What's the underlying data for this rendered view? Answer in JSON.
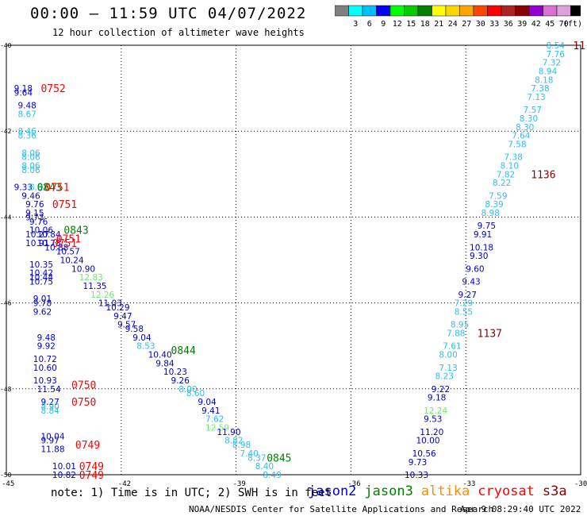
{
  "header": {
    "title": "00:00 – 11:59 UTC 04/07/2022",
    "subtitle": "12 hour collection of altimeter wave heights"
  },
  "colorbar": {
    "unit": "(ft)",
    "bins": [
      {
        "label": "",
        "color": "#808080"
      },
      {
        "label": "3",
        "color": "#00ffff"
      },
      {
        "label": "6",
        "color": "#00bfff"
      },
      {
        "label": "9",
        "color": "#0000ff"
      },
      {
        "label": "12",
        "color": "#00ff00"
      },
      {
        "label": "15",
        "color": "#00cc00"
      },
      {
        "label": "18",
        "color": "#008000"
      },
      {
        "label": "21",
        "color": "#ffff00"
      },
      {
        "label": "24",
        "color": "#ffd700"
      },
      {
        "label": "27",
        "color": "#ffa500"
      },
      {
        "label": "30",
        "color": "#ff4500"
      },
      {
        "label": "33",
        "color": "#ff0000"
      },
      {
        "label": "36",
        "color": "#b22222"
      },
      {
        "label": "39",
        "color": "#8b0000"
      },
      {
        "label": "42",
        "color": "#9400d3"
      },
      {
        "label": "45",
        "color": "#da70d6"
      },
      {
        "label": "70",
        "color": "#dda0dd"
      },
      {
        "label": "",
        "color": "#000000"
      }
    ]
  },
  "footer": {
    "note": "note: 1) Time is in UTC; 2) SWH is in feet",
    "credit": "NOAA/NESDIS Center for Satellite Applications and Research",
    "stamp": "Apr  9 08:29:40 UTC 2022",
    "legend": [
      {
        "name": "jason2",
        "color": "#0000cc"
      },
      {
        "name": "jason3",
        "color": "#008000"
      },
      {
        "name": "altika",
        "color": "#ff8c00"
      },
      {
        "name": "cryosat",
        "color": "#ff0000"
      },
      {
        "name": "s3a",
        "color": "#8b0000"
      }
    ]
  },
  "chart_data": {
    "type": "scatter",
    "xlim": [
      -45,
      -30
    ],
    "ylim": [
      -50,
      -40
    ],
    "xticks": [
      -45,
      -42,
      -39,
      -36,
      -33,
      -30
    ],
    "yticks": [
      -40,
      -42,
      -44,
      -46,
      -48,
      -50
    ],
    "grid": true,
    "points": [
      {
        "x": -44.8,
        "y": -41.0,
        "label": "9.18",
        "color": "#0000cc"
      },
      {
        "x": -44.8,
        "y": -41.1,
        "label": "9.64",
        "color": "#0000cc"
      },
      {
        "x": -44.7,
        "y": -41.4,
        "label": "9.48",
        "color": "#0000cc"
      },
      {
        "x": -44.7,
        "y": -41.6,
        "label": "8.67",
        "color": "#33bbee"
      },
      {
        "x": -44.7,
        "y": -42.0,
        "label": "8.46",
        "color": "#33bbee"
      },
      {
        "x": -44.7,
        "y": -42.1,
        "label": "8.36",
        "color": "#33bbee"
      },
      {
        "x": -44.6,
        "y": -42.5,
        "label": "8.06",
        "color": "#33bbee"
      },
      {
        "x": -44.6,
        "y": -42.6,
        "label": "8.06",
        "color": "#33bbee"
      },
      {
        "x": -44.6,
        "y": -42.8,
        "label": "8.06",
        "color": "#33bbee"
      },
      {
        "x": -44.6,
        "y": -42.9,
        "label": "8.06",
        "color": "#33bbee"
      },
      {
        "x": -44.8,
        "y": -43.3,
        "label": "9.33",
        "color": "#0000cc"
      },
      {
        "x": -44.4,
        "y": -43.3,
        "label": "8.62",
        "color": "#33bbee"
      },
      {
        "x": -44.6,
        "y": -43.5,
        "label": "9.46",
        "color": "#0000cc"
      },
      {
        "x": -44.5,
        "y": -43.7,
        "label": "9.76",
        "color": "#0000cc"
      },
      {
        "x": -44.5,
        "y": -43.9,
        "label": "9.15",
        "color": "#0000cc"
      },
      {
        "x": -44.5,
        "y": -44.0,
        "label": "9.73",
        "color": "#0000cc"
      },
      {
        "x": -44.4,
        "y": -44.1,
        "label": "9.76",
        "color": "#0000cc"
      },
      {
        "x": -44.4,
        "y": -44.3,
        "label": "10.06",
        "color": "#0000cc"
      },
      {
        "x": -44.5,
        "y": -44.4,
        "label": "10.27",
        "color": "#0000cc"
      },
      {
        "x": -44.5,
        "y": -44.6,
        "label": "10.91",
        "color": "#0000cc"
      },
      {
        "x": -44.2,
        "y": -44.4,
        "label": "10.84",
        "color": "#0000cc"
      },
      {
        "x": -44.2,
        "y": -44.6,
        "label": "10.78",
        "color": "#0000cc"
      },
      {
        "x": -44.0,
        "y": -44.7,
        "label": "10.88",
        "color": "#0000cc"
      },
      {
        "x": -43.7,
        "y": -44.8,
        "label": "10.57",
        "color": "#0000cc"
      },
      {
        "x": -43.6,
        "y": -45.0,
        "label": "10.24",
        "color": "#0000cc"
      },
      {
        "x": -44.4,
        "y": -45.1,
        "label": "10.35",
        "color": "#0000cc"
      },
      {
        "x": -44.4,
        "y": -45.3,
        "label": "10.42",
        "color": "#0000cc"
      },
      {
        "x": -44.4,
        "y": -45.4,
        "label": "10.44",
        "color": "#0000cc"
      },
      {
        "x": -44.4,
        "y": -45.5,
        "label": "10.75",
        "color": "#0000cc"
      },
      {
        "x": -43.3,
        "y": -45.2,
        "label": "10.90",
        "color": "#0000cc"
      },
      {
        "x": -43.1,
        "y": -45.4,
        "label": "12.83",
        "color": "#66ee66"
      },
      {
        "x": -43.0,
        "y": -45.6,
        "label": "11.35",
        "color": "#0000cc"
      },
      {
        "x": -42.8,
        "y": -45.8,
        "label": "12.26",
        "color": "#66ee66"
      },
      {
        "x": -42.6,
        "y": -46.0,
        "label": "11.03",
        "color": "#0000cc"
      },
      {
        "x": -44.3,
        "y": -45.9,
        "label": "9.01",
        "color": "#0000cc"
      },
      {
        "x": -44.3,
        "y": -46.0,
        "label": "9.78",
        "color": "#0000cc"
      },
      {
        "x": -44.3,
        "y": -46.2,
        "label": "9.62",
        "color": "#0000cc"
      },
      {
        "x": -42.4,
        "y": -46.1,
        "label": "10.29",
        "color": "#0000cc"
      },
      {
        "x": -42.2,
        "y": -46.3,
        "label": "9.47",
        "color": "#0000cc"
      },
      {
        "x": -42.1,
        "y": -46.5,
        "label": "9.57",
        "color": "#0000cc"
      },
      {
        "x": -41.9,
        "y": -46.6,
        "label": "9.58",
        "color": "#0000cc"
      },
      {
        "x": -41.7,
        "y": -46.8,
        "label": "9.04",
        "color": "#0000cc"
      },
      {
        "x": -41.6,
        "y": -47.0,
        "label": "8.53",
        "color": "#33bbee"
      },
      {
        "x": -44.2,
        "y": -46.8,
        "label": "9.48",
        "color": "#0000cc"
      },
      {
        "x": -44.2,
        "y": -47.0,
        "label": "9.92",
        "color": "#0000cc"
      },
      {
        "x": -44.3,
        "y": -47.3,
        "label": "10.72",
        "color": "#0000cc"
      },
      {
        "x": -44.3,
        "y": -47.5,
        "label": "10.60",
        "color": "#0000cc"
      },
      {
        "x": -41.3,
        "y": -47.2,
        "label": "10.40",
        "color": "#0000cc"
      },
      {
        "x": -41.1,
        "y": -47.4,
        "label": "9.84",
        "color": "#0000cc"
      },
      {
        "x": -40.9,
        "y": -47.6,
        "label": "10.23",
        "color": "#0000cc"
      },
      {
        "x": -40.7,
        "y": -47.8,
        "label": "9.26",
        "color": "#0000cc"
      },
      {
        "x": -44.3,
        "y": -47.8,
        "label": "10.93",
        "color": "#0000cc"
      },
      {
        "x": -40.5,
        "y": -48.0,
        "label": "8.00",
        "color": "#33bbee"
      },
      {
        "x": -40.3,
        "y": -48.1,
        "label": "8.60",
        "color": "#33bbee"
      },
      {
        "x": -44.2,
        "y": -48.0,
        "label": "11.54",
        "color": "#0000cc"
      },
      {
        "x": -40.0,
        "y": -48.3,
        "label": "9.04",
        "color": "#0000cc"
      },
      {
        "x": -44.1,
        "y": -48.3,
        "label": "9.27",
        "color": "#0000cc"
      },
      {
        "x": -44.1,
        "y": -48.4,
        "label": "8.90",
        "color": "#33bbee"
      },
      {
        "x": -44.1,
        "y": -48.5,
        "label": "8.84",
        "color": "#33bbee"
      },
      {
        "x": -39.9,
        "y": -48.5,
        "label": "9.41",
        "color": "#0000cc"
      },
      {
        "x": -39.8,
        "y": -48.7,
        "label": "7.62",
        "color": "#33bbee"
      },
      {
        "x": -39.8,
        "y": -48.9,
        "label": "12.59",
        "color": "#66ee66"
      },
      {
        "x": -39.5,
        "y": -49.0,
        "label": "11.90",
        "color": "#0000cc"
      },
      {
        "x": -39.3,
        "y": -49.2,
        "label": "8.82",
        "color": "#33bbee"
      },
      {
        "x": -39.1,
        "y": -49.3,
        "label": "8.98",
        "color": "#33bbee"
      },
      {
        "x": -38.9,
        "y": -49.5,
        "label": "7.40",
        "color": "#33bbee"
      },
      {
        "x": -38.7,
        "y": -49.6,
        "label": "8.37",
        "color": "#33bbee"
      },
      {
        "x": -38.5,
        "y": -49.8,
        "label": "8.40",
        "color": "#33bbee"
      },
      {
        "x": -38.3,
        "y": -50.0,
        "label": "8.49",
        "color": "#33bbee"
      },
      {
        "x": -44.1,
        "y": -49.1,
        "label": "10.04",
        "color": "#0000cc"
      },
      {
        "x": -44.1,
        "y": -49.2,
        "label": "9.97",
        "color": "#0000cc"
      },
      {
        "x": -44.1,
        "y": -49.4,
        "label": "11.88",
        "color": "#0000cc"
      },
      {
        "x": -43.8,
        "y": -49.8,
        "label": "10.01",
        "color": "#0000cc"
      },
      {
        "x": -43.8,
        "y": -50.0,
        "label": "10.82",
        "color": "#0000cc"
      },
      {
        "x": -30.9,
        "y": -40.0,
        "label": "8.54",
        "color": "#33bbee"
      },
      {
        "x": -30.9,
        "y": -40.2,
        "label": "7.76",
        "color": "#33bbee"
      },
      {
        "x": -31.0,
        "y": -40.4,
        "label": "7.32",
        "color": "#33bbee"
      },
      {
        "x": -31.1,
        "y": -40.6,
        "label": "8.94",
        "color": "#33bbee"
      },
      {
        "x": -31.2,
        "y": -40.8,
        "label": "8.18",
        "color": "#33bbee"
      },
      {
        "x": -31.3,
        "y": -41.0,
        "label": "7.38",
        "color": "#33bbee"
      },
      {
        "x": -31.4,
        "y": -41.2,
        "label": "7.13",
        "color": "#33bbee"
      },
      {
        "x": -31.5,
        "y": -41.5,
        "label": "7.57",
        "color": "#33bbee"
      },
      {
        "x": -31.6,
        "y": -41.7,
        "label": "8.30",
        "color": "#33bbee"
      },
      {
        "x": -31.7,
        "y": -41.9,
        "label": "8.30",
        "color": "#33bbee"
      },
      {
        "x": -31.8,
        "y": -42.1,
        "label": "7.64",
        "color": "#33bbee"
      },
      {
        "x": -31.9,
        "y": -42.3,
        "label": "7.58",
        "color": "#33bbee"
      },
      {
        "x": -32.0,
        "y": -42.6,
        "label": "7.38",
        "color": "#33bbee"
      },
      {
        "x": -32.1,
        "y": -42.8,
        "label": "8.10",
        "color": "#33bbee"
      },
      {
        "x": -32.2,
        "y": -43.0,
        "label": "7.82",
        "color": "#33bbee"
      },
      {
        "x": -32.3,
        "y": -43.2,
        "label": "8.22",
        "color": "#33bbee"
      },
      {
        "x": -32.4,
        "y": -43.5,
        "label": "7.59",
        "color": "#33bbee"
      },
      {
        "x": -32.5,
        "y": -43.7,
        "label": "8.39",
        "color": "#33bbee"
      },
      {
        "x": -32.6,
        "y": -43.9,
        "label": "8.98",
        "color": "#33bbee"
      },
      {
        "x": -32.7,
        "y": -44.2,
        "label": "9.75",
        "color": "#0000cc"
      },
      {
        "x": -32.8,
        "y": -44.4,
        "label": "9.91",
        "color": "#0000cc"
      },
      {
        "x": -32.9,
        "y": -44.7,
        "label": "10.18",
        "color": "#0000cc"
      },
      {
        "x": -32.9,
        "y": -44.9,
        "label": "9.30",
        "color": "#0000cc"
      },
      {
        "x": -33.0,
        "y": -45.2,
        "label": "9.60",
        "color": "#0000cc"
      },
      {
        "x": -33.1,
        "y": -45.5,
        "label": "9.43",
        "color": "#0000cc"
      },
      {
        "x": -33.2,
        "y": -45.8,
        "label": "9.27",
        "color": "#0000cc"
      },
      {
        "x": -33.3,
        "y": -46.0,
        "label": "7.29",
        "color": "#33bbee"
      },
      {
        "x": -33.3,
        "y": -46.2,
        "label": "8.55",
        "color": "#33bbee"
      },
      {
        "x": -33.4,
        "y": -46.5,
        "label": "8.95",
        "color": "#33bbee"
      },
      {
        "x": -33.5,
        "y": -46.7,
        "label": "7.88",
        "color": "#33bbee"
      },
      {
        "x": -33.6,
        "y": -47.0,
        "label": "7.61",
        "color": "#33bbee"
      },
      {
        "x": -33.7,
        "y": -47.2,
        "label": "8.00",
        "color": "#33bbee"
      },
      {
        "x": -33.7,
        "y": -47.5,
        "label": "7.13",
        "color": "#33bbee"
      },
      {
        "x": -33.8,
        "y": -47.7,
        "label": "8.23",
        "color": "#33bbee"
      },
      {
        "x": -33.9,
        "y": -48.0,
        "label": "9.22",
        "color": "#0000cc"
      },
      {
        "x": -34.0,
        "y": -48.2,
        "label": "9.18",
        "color": "#0000cc"
      },
      {
        "x": -34.1,
        "y": -48.5,
        "label": "12.24",
        "color": "#66ee66"
      },
      {
        "x": -34.1,
        "y": -48.7,
        "label": "9.53",
        "color": "#0000cc"
      },
      {
        "x": -34.2,
        "y": -49.0,
        "label": "11.20",
        "color": "#0000cc"
      },
      {
        "x": -34.3,
        "y": -49.2,
        "label": "10.00",
        "color": "#0000cc"
      },
      {
        "x": -34.4,
        "y": -49.5,
        "label": "10.56",
        "color": "#0000cc"
      },
      {
        "x": -34.5,
        "y": -49.7,
        "label": "9.73",
        "color": "#0000cc"
      },
      {
        "x": -34.6,
        "y": -50.0,
        "label": "10.33",
        "color": "#0000cc"
      }
    ],
    "time_labels": [
      {
        "x": -44.1,
        "y": -41.0,
        "label": "0752",
        "color": "#ff0000"
      },
      {
        "x": -44.2,
        "y": -43.3,
        "label": "0843",
        "color": "#008000"
      },
      {
        "x": -44.0,
        "y": -43.3,
        "label": "0751",
        "color": "#ff0000"
      },
      {
        "x": -43.8,
        "y": -43.7,
        "label": "0751",
        "color": "#ff0000"
      },
      {
        "x": -43.5,
        "y": -44.3,
        "label": "0843",
        "color": "#008000"
      },
      {
        "x": -43.7,
        "y": -44.5,
        "label": "0751",
        "color": "#ff0000"
      },
      {
        "x": -43.8,
        "y": -44.6,
        "label": "0751",
        "color": "#ff0000"
      },
      {
        "x": -40.7,
        "y": -47.1,
        "label": "0844",
        "color": "#008000"
      },
      {
        "x": -43.3,
        "y": -47.9,
        "label": "0750",
        "color": "#ff0000"
      },
      {
        "x": -43.3,
        "y": -48.3,
        "label": "0750",
        "color": "#ff0000"
      },
      {
        "x": -43.2,
        "y": -49.3,
        "label": "0749",
        "color": "#ff0000"
      },
      {
        "x": -43.1,
        "y": -49.8,
        "label": "0749",
        "color": "#ff0000"
      },
      {
        "x": -43.1,
        "y": -50.0,
        "label": "0749",
        "color": "#ff0000"
      },
      {
        "x": -38.2,
        "y": -49.6,
        "label": "0845",
        "color": "#008000"
      },
      {
        "x": -30.2,
        "y": -40.0,
        "label": "11",
        "color": "#8b0000"
      },
      {
        "x": -31.3,
        "y": -43.0,
        "label": "1136",
        "color": "#8b0000"
      },
      {
        "x": -32.7,
        "y": -46.7,
        "label": "1137",
        "color": "#8b0000"
      }
    ]
  }
}
